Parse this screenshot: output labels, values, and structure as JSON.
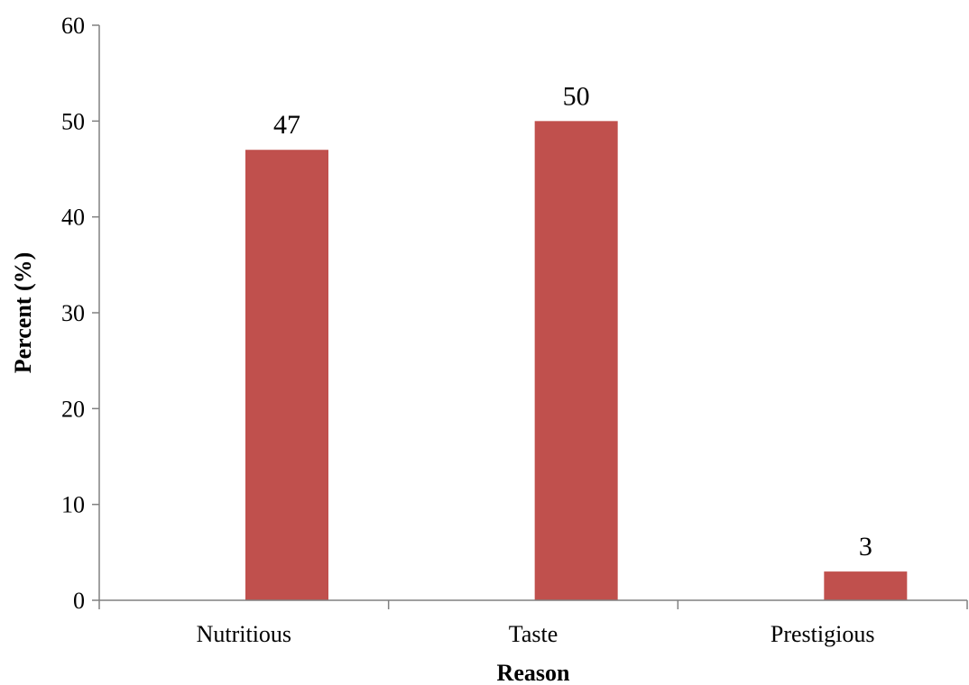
{
  "chart_data": {
    "type": "bar",
    "title": "",
    "xlabel": "Reason",
    "ylabel": "Percent (%)",
    "categories": [
      "Nutritious",
      "Taste",
      "Prestigious"
    ],
    "values": [
      47,
      50,
      3
    ],
    "data_labels": [
      "47",
      "50",
      "3"
    ],
    "ylim": [
      0,
      60
    ],
    "yticks": [
      0,
      10,
      20,
      30,
      40,
      50,
      60
    ],
    "ytick_labels": [
      "0",
      "10",
      "20",
      "30",
      "40",
      "50",
      "60"
    ],
    "grid": false,
    "legend": "none",
    "bar_color": "#C0504D"
  }
}
